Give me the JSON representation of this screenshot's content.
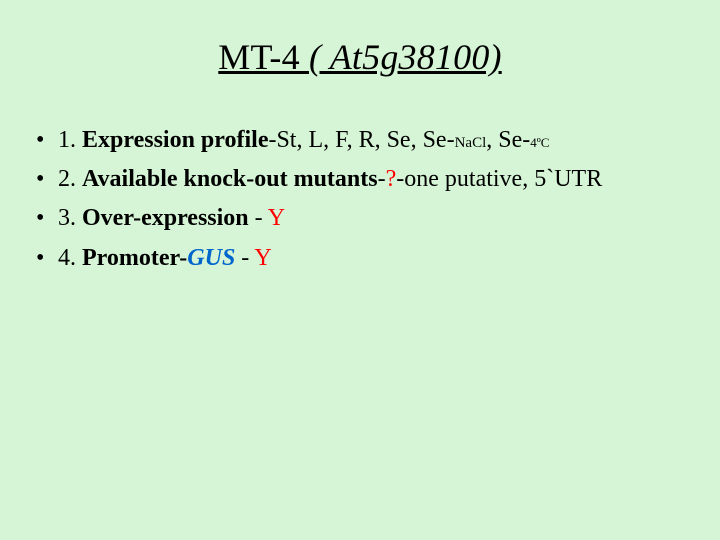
{
  "background_color": "#d6f5d6",
  "text_color": "#000000",
  "red_color": "#ff0000",
  "blue_color": "#0066cc",
  "title": {
    "main": "MT-4 ",
    "italic": "( At5g38100)",
    "fontsize": 36,
    "underline": true,
    "align": "center"
  },
  "items": [
    {
      "num": "1. ",
      "bold": "Expression profile",
      "plain": "-St, L, F, R, Se, ",
      "se1_prefix": "Se-",
      "se1_sub": "NaCl",
      "mid": ", ",
      "se2_prefix": "Se-",
      "se2_sub": "4ºC"
    },
    {
      "num": "2. ",
      "bold": "Available knock-out mutants",
      "dash1": "-",
      "q": "?",
      "rest": "-one putative, 5`UTR"
    },
    {
      "num": "3. ",
      "bold": "Over-expression",
      "dash": " - ",
      "y": "Y"
    },
    {
      "num": "4. ",
      "bold": "Promoter",
      "dash1": "-",
      "gus": "GUS",
      "dash2": " - ",
      "y": "Y"
    }
  ],
  "body_fontsize": 24,
  "sub_fontsize": 15
}
